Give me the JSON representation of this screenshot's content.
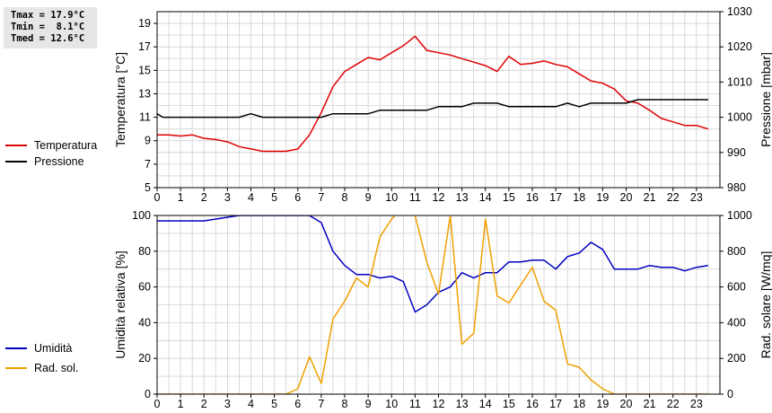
{
  "stats": {
    "tmax": "Tmax = 17.9°C",
    "tmin": "Tmin =  8.1°C",
    "tmed": "Tmed = 12.6°C"
  },
  "colors": {
    "temperatura": "#e00000",
    "pressione": "#000000",
    "umidita": "#0000c0",
    "rad_sol": "#f0a000",
    "grid": "#d0d0d0"
  },
  "chart_data": [
    {
      "type": "line",
      "x_ticks": [
        "0",
        "1",
        "2",
        "3",
        "4",
        "5",
        "6",
        "7",
        "8",
        "9",
        "10",
        "11",
        "12",
        "13",
        "14",
        "15",
        "16",
        "17",
        "18",
        "19",
        "20",
        "21",
        "22",
        "23"
      ],
      "xlim": [
        0,
        24
      ],
      "ylabel_left": "Temperatura [°C]",
      "ylabel_right": "Pressione [mbar]",
      "ylim_left": [
        5,
        20
      ],
      "ylim_right": [
        980,
        1030
      ],
      "yticks_left": [
        "5",
        "7",
        "9",
        "11",
        "13",
        "15",
        "17",
        "19"
      ],
      "yticks_right": [
        "980",
        "990",
        "1000",
        "1010",
        "1020",
        "1030"
      ],
      "grid": true,
      "legend": "left",
      "series": [
        {
          "name": "Temperatura",
          "axis": "left",
          "x": [
            0,
            0.5,
            1,
            1.5,
            2,
            2.5,
            3,
            3.5,
            4,
            4.5,
            5,
            5.5,
            6,
            6.5,
            7,
            7.5,
            8,
            8.5,
            9,
            9.5,
            10,
            10.5,
            11,
            11.5,
            12,
            12.5,
            13,
            13.5,
            14,
            14.5,
            15,
            15.5,
            16,
            16.5,
            17,
            17.5,
            18,
            18.5,
            19,
            19.5,
            20,
            20.5,
            21,
            21.5,
            22,
            22.5,
            23,
            23.5
          ],
          "y": [
            9.5,
            9.5,
            9.4,
            9.5,
            9.2,
            9.1,
            8.9,
            8.5,
            8.3,
            8.1,
            8.1,
            8.1,
            8.3,
            9.5,
            11.4,
            13.6,
            14.9,
            15.5,
            16.1,
            15.9,
            16.5,
            17.1,
            17.9,
            16.7,
            16.5,
            16.3,
            16.0,
            15.7,
            15.4,
            14.9,
            16.2,
            15.5,
            15.6,
            15.8,
            15.5,
            15.3,
            14.7,
            14.1,
            13.9,
            13.4,
            12.4,
            12.2,
            11.6,
            10.9,
            10.6,
            10.3,
            10.3,
            10.0
          ]
        },
        {
          "name": "Pressione",
          "axis": "right",
          "x": [
            0,
            0.25,
            1,
            2,
            3,
            3.5,
            4,
            4.5,
            5,
            6,
            7,
            7.5,
            8,
            9,
            9.5,
            10,
            11,
            11.5,
            12,
            13,
            13.5,
            14,
            14.5,
            15,
            16,
            17,
            17.5,
            18,
            18.5,
            19,
            20,
            20.5,
            21,
            22,
            23,
            23.5
          ],
          "y": [
            1001,
            1000,
            1000,
            1000,
            1000,
            1000,
            1001,
            1000,
            1000,
            1000,
            1000,
            1001,
            1001,
            1001,
            1002,
            1002,
            1002,
            1002,
            1003,
            1003,
            1004,
            1004,
            1004,
            1003,
            1003,
            1003,
            1004,
            1003,
            1004,
            1004,
            1004,
            1005,
            1005,
            1005,
            1005,
            1005
          ]
        }
      ]
    },
    {
      "type": "line",
      "x_ticks": [
        "0",
        "1",
        "2",
        "3",
        "4",
        "5",
        "6",
        "7",
        "8",
        "9",
        "10",
        "11",
        "12",
        "13",
        "14",
        "15",
        "16",
        "17",
        "18",
        "19",
        "20",
        "21",
        "22",
        "23"
      ],
      "xlim": [
        0,
        24
      ],
      "ylabel_left": "Umidità relativa [%]",
      "ylabel_right": "Rad. solare [W/mq]",
      "ylim_left": [
        0,
        100
      ],
      "ylim_right": [
        0,
        1000
      ],
      "yticks_left": [
        "0",
        "20",
        "40",
        "60",
        "80",
        "100"
      ],
      "yticks_right": [
        "0",
        "200",
        "400",
        "600",
        "800",
        "1000"
      ],
      "grid": true,
      "legend": "left",
      "series": [
        {
          "name": "Umidità",
          "axis": "left",
          "x": [
            0,
            1,
            2,
            2.5,
            3,
            3.5,
            4,
            4.5,
            5,
            6,
            6.5,
            7,
            7.5,
            8,
            8.5,
            9,
            9.5,
            10,
            10.5,
            11,
            11.5,
            12,
            12.5,
            13,
            13.5,
            14,
            14.5,
            15,
            15.5,
            16,
            16.5,
            17,
            17.5,
            18,
            18.5,
            19,
            19.5,
            20,
            20.5,
            21,
            21.5,
            22,
            22.5,
            23,
            23.5
          ],
          "y": [
            97,
            97,
            97,
            98,
            99,
            100,
            100,
            100,
            100,
            100,
            100,
            96,
            80,
            72,
            67,
            67,
            65,
            66,
            63,
            46,
            50,
            57,
            60,
            68,
            65,
            68,
            68,
            74,
            74,
            75,
            75,
            70,
            77,
            79,
            85,
            81,
            70,
            70,
            70,
            72,
            71,
            71,
            69,
            71,
            72
          ]
        },
        {
          "name": "Rad. sol.",
          "axis": "right",
          "x": [
            0,
            5.5,
            6,
            6.5,
            7,
            7.5,
            8,
            8.5,
            9,
            9.5,
            10,
            10.5,
            11,
            11.5,
            12,
            12.5,
            13,
            13.5,
            14,
            14.5,
            15,
            15.5,
            16,
            16.5,
            17,
            17.5,
            18,
            18.5,
            19,
            19.5,
            23.5
          ],
          "y": [
            0,
            0,
            30,
            210,
            60,
            420,
            520,
            650,
            600,
            880,
            980,
            1050,
            1000,
            740,
            560,
            1000,
            280,
            340,
            980,
            550,
            510,
            610,
            710,
            520,
            470,
            170,
            150,
            80,
            30,
            0,
            0
          ]
        }
      ]
    }
  ]
}
